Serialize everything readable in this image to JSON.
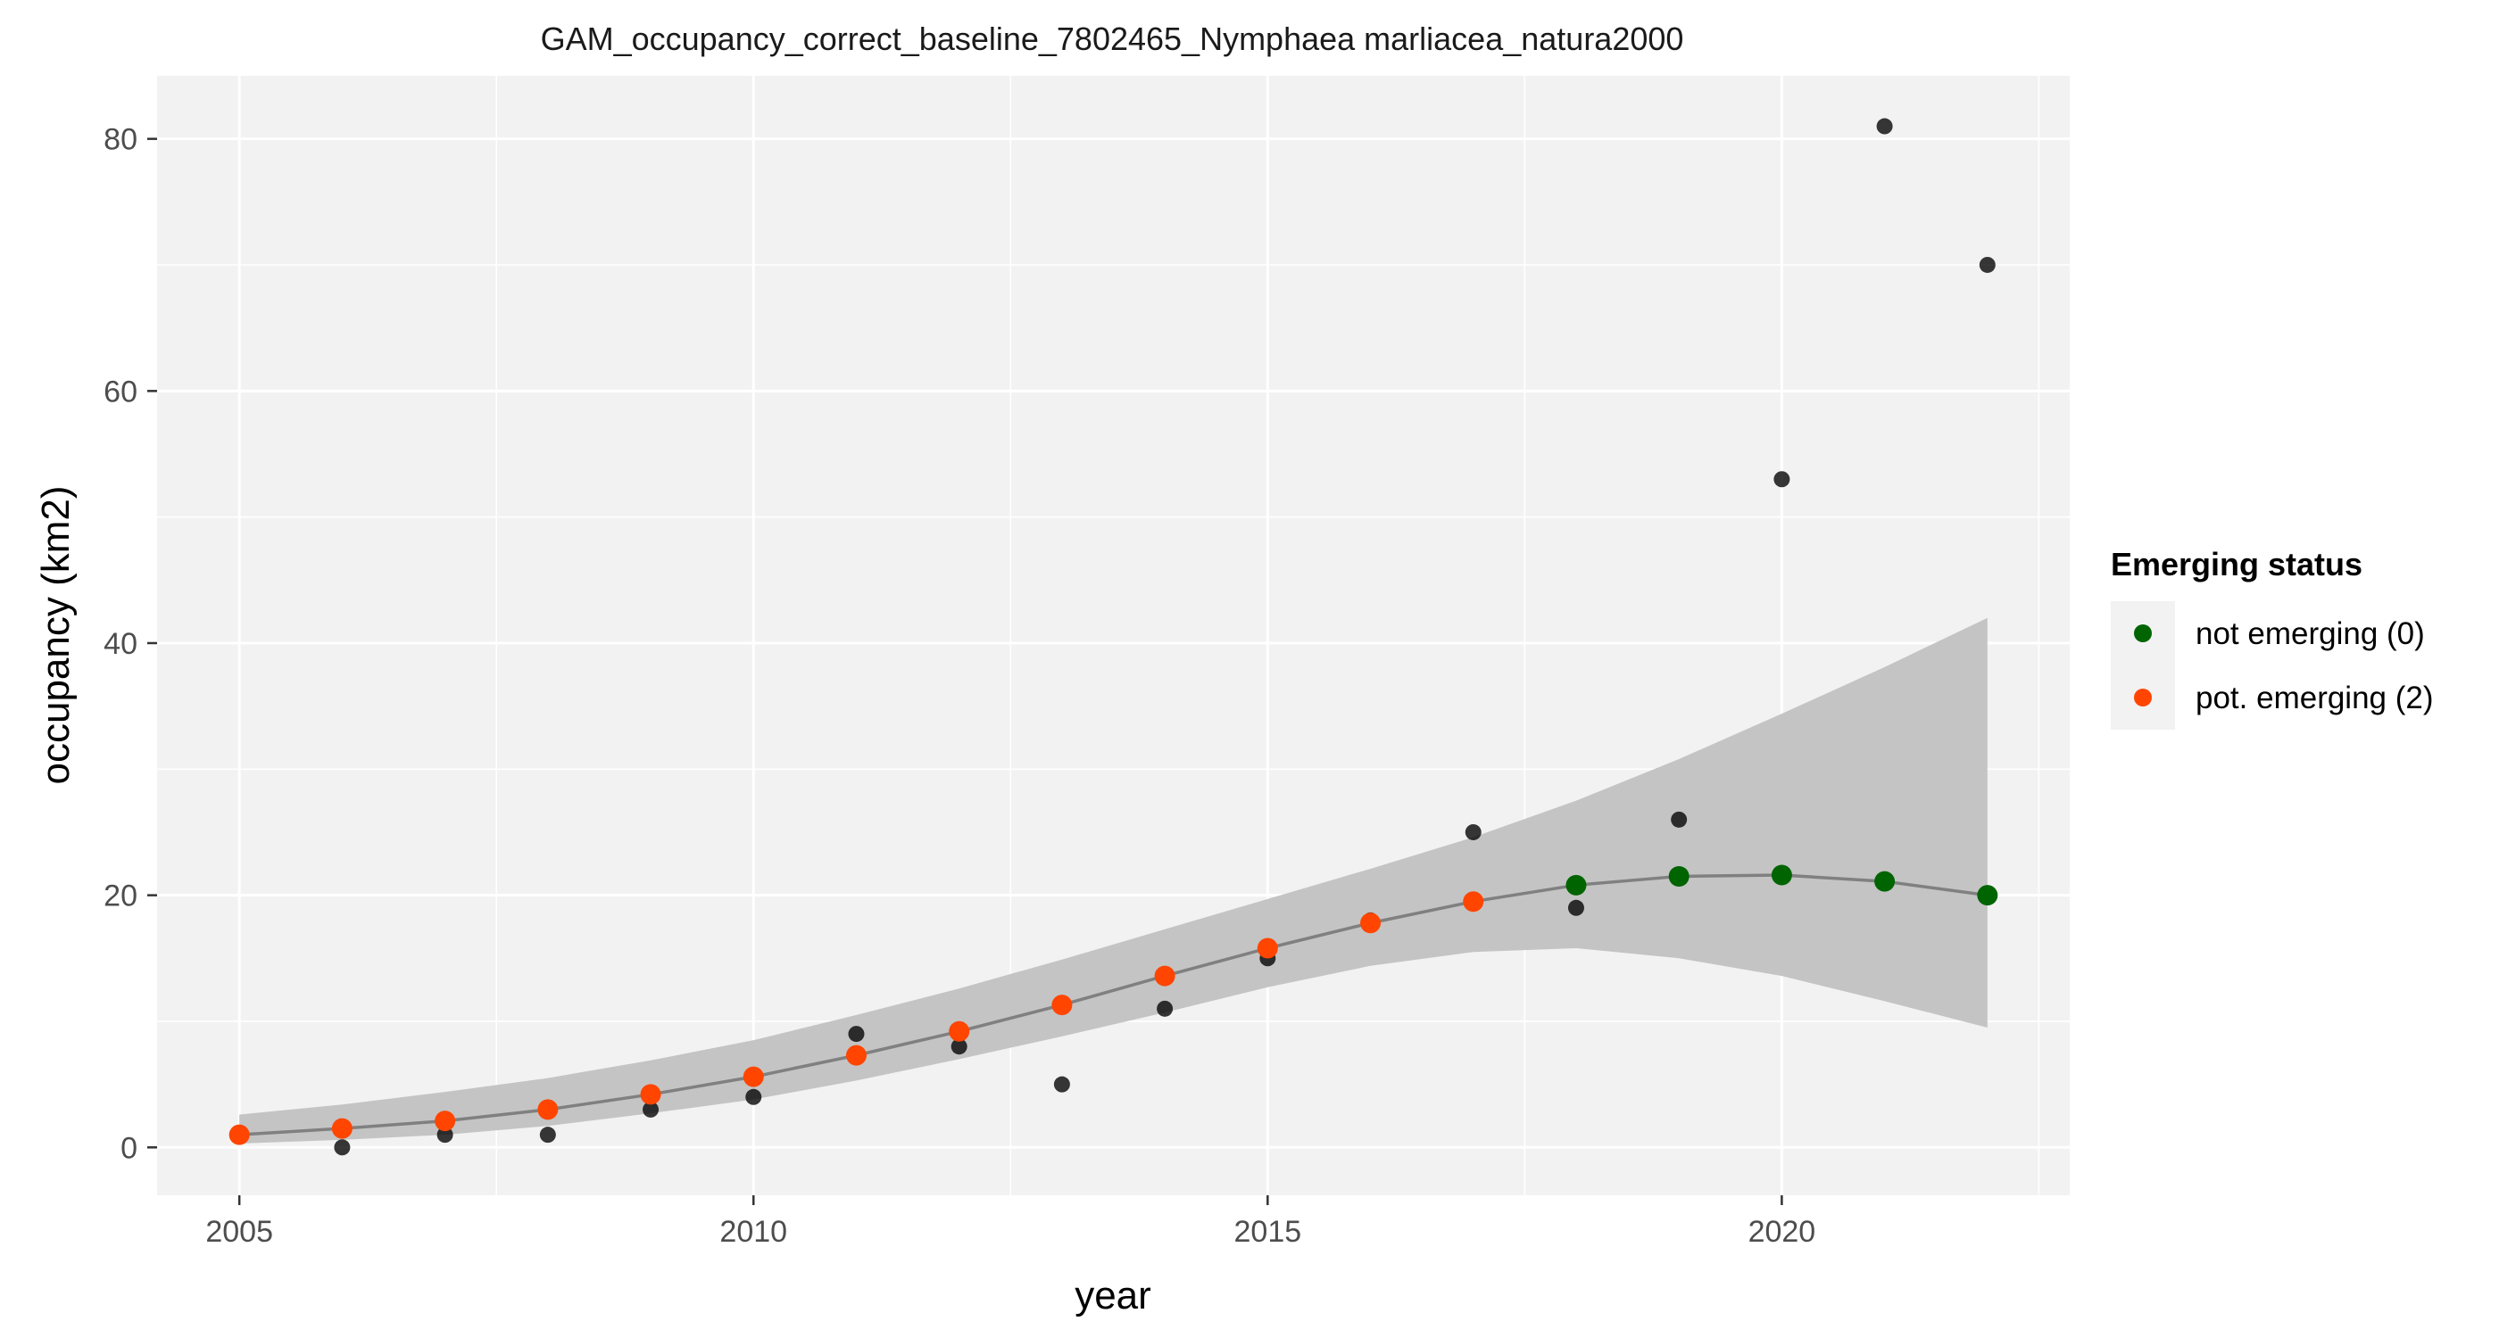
{
  "chart_data": {
    "type": "scatter",
    "title": "GAM_occupancy_correct_baseline_7802465_Nymphaea marliacea_natura2000",
    "xlabel": "year",
    "ylabel": "occupancy (km2)",
    "xlim": [
      2004.2,
      2022.8
    ],
    "ylim": [
      -3.8,
      85
    ],
    "x_ticks": [
      2005,
      2010,
      2015,
      2020
    ],
    "y_ticks": [
      0,
      20,
      40,
      60,
      80
    ],
    "grid": true,
    "legend_position": "right",
    "legend_title": "Emerging status",
    "colors": {
      "panel_background": "#f2f2f2",
      "grid": "#ffffff",
      "ribbon": "#c4c4c4",
      "fit_line": "#808080",
      "observed": "#000000",
      "not_emerging": "#006400",
      "pot_emerging": "#ff4500"
    },
    "legend": [
      {
        "label": "not emerging (0)",
        "color": "#006400"
      },
      {
        "label": "pot. emerging (2)",
        "color": "#ff4500"
      }
    ],
    "series": [
      {
        "kind": "confidence_band",
        "x": [
          2005,
          2006,
          2007,
          2008,
          2009,
          2010,
          2011,
          2012,
          2013,
          2014,
          2015,
          2016,
          2017,
          2018,
          2019,
          2020,
          2021,
          2022
        ],
        "lower": [
          0.3,
          0.6,
          1.0,
          1.7,
          2.7,
          3.8,
          5.3,
          7.0,
          8.8,
          10.7,
          12.7,
          14.4,
          15.5,
          15.8,
          15.0,
          13.6,
          11.6,
          9.5
        ],
        "upper": [
          2.6,
          3.4,
          4.4,
          5.5,
          6.9,
          8.5,
          10.5,
          12.6,
          14.9,
          17.3,
          19.7,
          22.1,
          24.6,
          27.5,
          30.8,
          34.4,
          38.1,
          42.0
        ]
      },
      {
        "kind": "fitted",
        "x": [
          2005,
          2006,
          2007,
          2008,
          2009,
          2010,
          2011,
          2012,
          2013,
          2014,
          2015,
          2016,
          2017,
          2018,
          2019,
          2020,
          2021,
          2022
        ],
        "y": [
          1.0,
          1.5,
          2.1,
          3.0,
          4.2,
          5.6,
          7.3,
          9.2,
          11.3,
          13.6,
          15.8,
          17.8,
          19.5,
          20.8,
          21.5,
          21.6,
          21.1,
          20.0
        ],
        "status": [
          "pot. emerging (2)",
          "pot. emerging (2)",
          "pot. emerging (2)",
          "pot. emerging (2)",
          "pot. emerging (2)",
          "pot. emerging (2)",
          "pot. emerging (2)",
          "pot. emerging (2)",
          "pot. emerging (2)",
          "pot. emerging (2)",
          "pot. emerging (2)",
          "pot. emerging (2)",
          "pot. emerging (2)",
          "not emerging (0)",
          "not emerging (0)",
          "not emerging (0)",
          "not emerging (0)",
          "not emerging (0)"
        ]
      },
      {
        "kind": "observed",
        "x": [
          2005,
          2006,
          2007,
          2008,
          2009,
          2010,
          2011,
          2012,
          2013,
          2014,
          2015,
          2016,
          2017,
          2018,
          2019,
          2020,
          2021,
          2022
        ],
        "y": [
          1,
          0,
          1,
          1,
          3,
          4,
          9,
          8,
          5,
          11,
          15,
          18,
          25,
          19,
          26,
          53,
          81,
          70
        ]
      }
    ]
  }
}
